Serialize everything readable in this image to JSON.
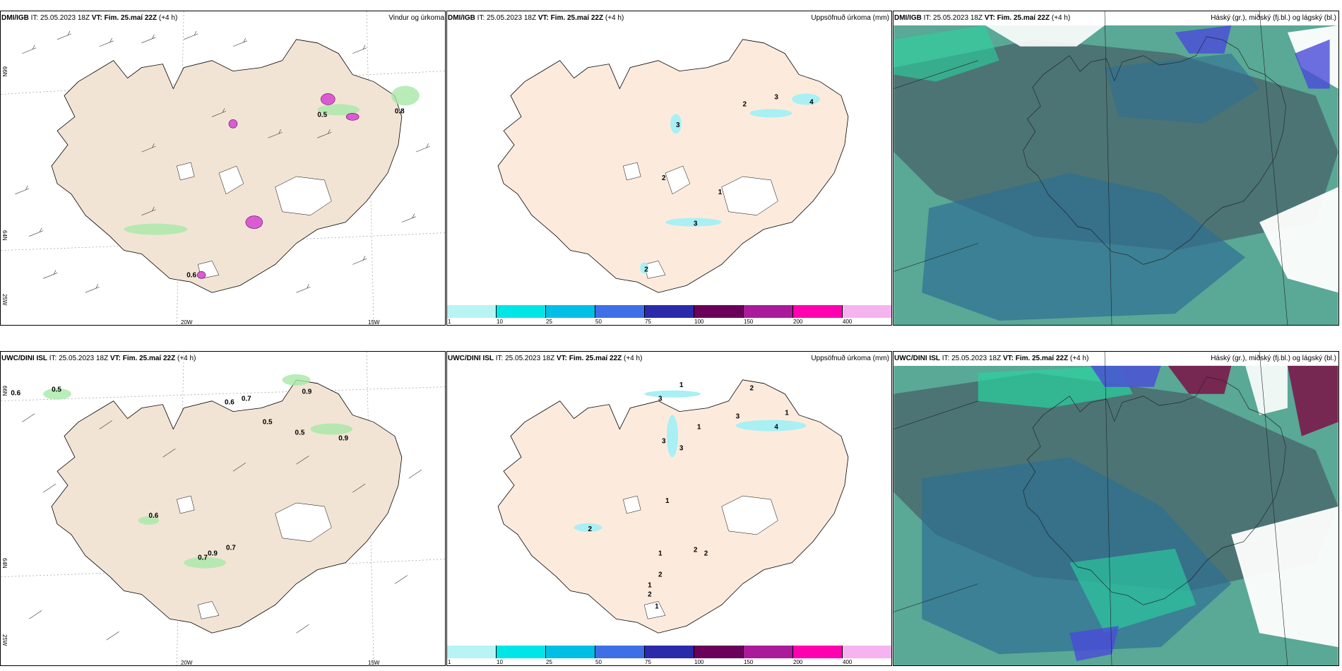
{
  "rows": [
    {
      "wind": {
        "source": "DMI/IGB",
        "it": " IT: 25.05.2023 18Z ",
        "vt": "VT: Fim. 25.maí 22Z",
        "lead": " (+4 h)",
        "title": "Vindur og úrkoma",
        "lon_labels": [
          "20W",
          "15W"
        ],
        "lat_labels": [
          "66N",
          "64N",
          "25W"
        ],
        "values": [
          "0.5",
          "0.8",
          "0.6"
        ]
      },
      "precip": {
        "source": "DMI/IGB",
        "it": " IT: 25.05.2023 18Z ",
        "vt": "VT: Fim. 25.maí 22Z",
        "lead": " (+4 h)",
        "title": "Uppsöfnuð úrkoma (mm)",
        "values": [
          "3",
          "2",
          "3",
          "4",
          "2",
          "1",
          "3",
          "2"
        ]
      },
      "cloud": {
        "source": "DMI/IGB",
        "it": " IT: 25.05.2023 18Z ",
        "vt": "VT: Fim. 25.maí 22Z",
        "lead": " (+4 h)",
        "title": "Háský (gr.), miðský (fj.bl.) og lágský (bl.)"
      }
    },
    {
      "wind": {
        "source": "UWC/DINI ISL",
        "it": " IT: 25.05.2023 18Z ",
        "vt": "VT: Fim. 25.maí 22Z",
        "lead": " (+4 h)",
        "title": "",
        "lon_labels": [
          "20W",
          "15W"
        ],
        "lat_labels": [
          "66N",
          "64N",
          "25W"
        ],
        "values": [
          "0.6",
          "0.5",
          "0.6",
          "0.7",
          "0.9",
          "0.5",
          "0.5",
          "0.9",
          "0.6",
          "0.9",
          "0.7",
          "0.7"
        ]
      },
      "precip": {
        "source": "UWC/DINI ISL",
        "it": " IT: 25.05.2023 18Z ",
        "vt": "VT: Fim. 25.maí 22Z",
        "lead": " (+4 h)",
        "title": "Uppsöfnuð úrkoma (mm)",
        "values": [
          "1",
          "2",
          "3",
          "3",
          "3",
          "3",
          "1",
          "1",
          "4",
          "2",
          "1",
          "1",
          "2",
          "2",
          "2",
          "1",
          "2",
          "1"
        ]
      },
      "cloud": {
        "source": "UWC/DINI ISL",
        "it": " IT: 25.05.2023 18Z ",
        "vt": "VT: Fim. 25.maí 22Z",
        "lead": " (+4 h)",
        "title": "Háský (gr.), miðský (fj.bl.) og lágský (bl.)"
      }
    }
  ],
  "colorbar": {
    "ticks": [
      "1",
      "10",
      "25",
      "50",
      "75",
      "100",
      "150",
      "200",
      "400"
    ],
    "colors": [
      "#b8f4f4",
      "#00e6e6",
      "#00bfe6",
      "#3f6fe6",
      "#2a2aaa",
      "#6a005a",
      "#aa1a9a",
      "#ff00b0",
      "#f5b3ef"
    ]
  },
  "colors": {
    "land": "#f2e4d4",
    "land_precip": "#fcebdd",
    "ocean_teal": "#5aa896",
    "cloud_dark": "#4a6e70",
    "cloud_blue": "#2e6f93",
    "green": "#a8e8a8",
    "magenta": "#d95cd1",
    "cyan": "#a8f0f4",
    "grid": "#999999"
  }
}
